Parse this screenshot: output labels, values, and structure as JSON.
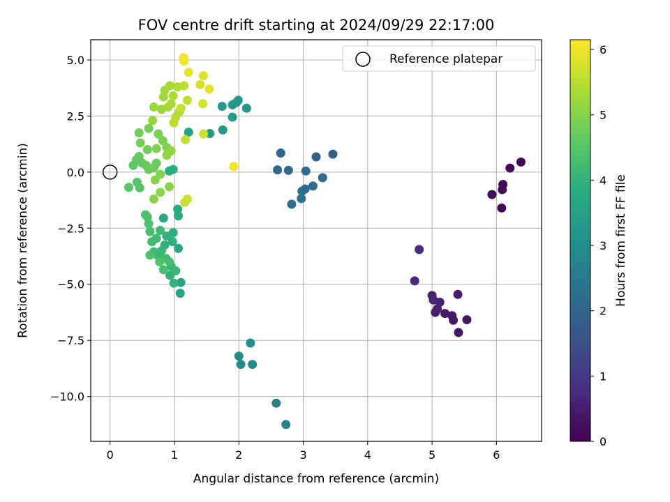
{
  "chart_data": {
    "type": "scatter",
    "title": "FOV centre drift starting at 2024/09/29 22:17:00",
    "xlabel": "Angular distance from reference (arcmin)",
    "ylabel": "Rotation from reference (arcmin)",
    "xlim": [
      -0.3,
      6.7
    ],
    "ylim": [
      -12.0,
      5.9
    ],
    "xticks": [
      0,
      1,
      2,
      3,
      4,
      5,
      6
    ],
    "xtick_labels": [
      "0",
      "1",
      "2",
      "3",
      "4",
      "5",
      "6"
    ],
    "yticks": [
      5.0,
      2.5,
      0.0,
      -2.5,
      -5.0,
      -7.5,
      -10.0
    ],
    "ytick_labels": [
      "5.0",
      "2.5",
      "0.0",
      "−2.5",
      "−5.0",
      "−7.5",
      "−10.0"
    ],
    "grid": true,
    "legend": {
      "position": "upper-right",
      "entries": [
        "Reference platepar"
      ]
    },
    "reference_point": {
      "label": "Reference platepar",
      "x": 0.0,
      "y": 0.0,
      "marker": "open-circle"
    },
    "colorbar": {
      "label": "Hours from first FF file",
      "colormap": "viridis",
      "range": [
        0,
        6.15
      ],
      "ticks": [
        0,
        1,
        2,
        3,
        4,
        5,
        6
      ],
      "tick_labels": [
        "0",
        "1",
        "2",
        "3",
        "4",
        "5",
        "6"
      ]
    },
    "points": [
      {
        "x": 6.38,
        "y": 0.45,
        "t": 0.05
      },
      {
        "x": 6.21,
        "y": 0.18,
        "t": 0.1
      },
      {
        "x": 6.1,
        "y": -0.55,
        "t": 0.12
      },
      {
        "x": 6.09,
        "y": -0.78,
        "t": 0.15
      },
      {
        "x": 5.93,
        "y": -1.0,
        "t": 0.18
      },
      {
        "x": 6.08,
        "y": -1.6,
        "t": 0.2
      },
      {
        "x": 5.41,
        "y": -7.15,
        "t": 0.35
      },
      {
        "x": 5.54,
        "y": -6.58,
        "t": 0.38
      },
      {
        "x": 5.33,
        "y": -6.6,
        "t": 0.4
      },
      {
        "x": 5.31,
        "y": -6.4,
        "t": 0.42
      },
      {
        "x": 5.2,
        "y": -6.3,
        "t": 0.45
      },
      {
        "x": 5.4,
        "y": -5.45,
        "t": 0.48
      },
      {
        "x": 5.05,
        "y": -6.25,
        "t": 0.5
      },
      {
        "x": 5.12,
        "y": -5.8,
        "t": 0.55
      },
      {
        "x": 5.08,
        "y": -6.1,
        "t": 0.58
      },
      {
        "x": 5.0,
        "y": -5.5,
        "t": 0.6
      },
      {
        "x": 5.02,
        "y": -5.7,
        "t": 0.62
      },
      {
        "x": 4.73,
        "y": -4.85,
        "t": 0.7
      },
      {
        "x": 4.8,
        "y": -3.45,
        "t": 0.75
      },
      {
        "x": 3.46,
        "y": 0.8,
        "t": 1.9
      },
      {
        "x": 3.2,
        "y": 0.68,
        "t": 1.95
      },
      {
        "x": 2.65,
        "y": 0.85,
        "t": 2.0
      },
      {
        "x": 2.6,
        "y": 0.1,
        "t": 2.05
      },
      {
        "x": 2.77,
        "y": 0.08,
        "t": 2.1
      },
      {
        "x": 3.04,
        "y": 0.05,
        "t": 2.12
      },
      {
        "x": 3.3,
        "y": -0.25,
        "t": 2.15
      },
      {
        "x": 3.15,
        "y": -0.62,
        "t": 2.2
      },
      {
        "x": 2.98,
        "y": -0.85,
        "t": 2.22
      },
      {
        "x": 3.03,
        "y": -0.75,
        "t": 2.25
      },
      {
        "x": 2.97,
        "y": -1.18,
        "t": 2.28
      },
      {
        "x": 2.82,
        "y": -1.43,
        "t": 2.3
      },
      {
        "x": 2.58,
        "y": -10.3,
        "t": 2.7
      },
      {
        "x": 2.73,
        "y": -11.25,
        "t": 2.75
      },
      {
        "x": 2.0,
        "y": -8.2,
        "t": 2.9
      },
      {
        "x": 2.03,
        "y": -8.57,
        "t": 2.95
      },
      {
        "x": 2.21,
        "y": -8.57,
        "t": 3.0
      },
      {
        "x": 2.18,
        "y": -7.62,
        "t": 3.05
      },
      {
        "x": 1.99,
        "y": 3.2,
        "t": 3.2
      },
      {
        "x": 2.12,
        "y": 2.85,
        "t": 3.22
      },
      {
        "x": 1.9,
        "y": 3.0,
        "t": 3.25
      },
      {
        "x": 1.96,
        "y": 3.1,
        "t": 3.27
      },
      {
        "x": 1.74,
        "y": 2.93,
        "t": 3.3
      },
      {
        "x": 1.75,
        "y": 1.88,
        "t": 3.32
      },
      {
        "x": 1.9,
        "y": 2.45,
        "t": 3.35
      },
      {
        "x": 1.55,
        "y": 1.72,
        "t": 3.4
      },
      {
        "x": 1.22,
        "y": 1.78,
        "t": 3.5
      },
      {
        "x": 1.1,
        "y": -4.92,
        "t": 3.55
      },
      {
        "x": 1.09,
        "y": -5.4,
        "t": 3.6
      },
      {
        "x": 1.06,
        "y": -3.4,
        "t": 3.65
      },
      {
        "x": 1.05,
        "y": -1.65,
        "t": 3.7
      },
      {
        "x": 1.06,
        "y": -1.95,
        "t": 3.72
      },
      {
        "x": 0.83,
        "y": -2.05,
        "t": 3.75
      },
      {
        "x": 0.92,
        "y": 0.05,
        "t": 3.8
      },
      {
        "x": 0.98,
        "y": 0.12,
        "t": 3.85
      },
      {
        "x": 0.98,
        "y": -2.7,
        "t": 3.9
      },
      {
        "x": 0.97,
        "y": -3.1,
        "t": 3.92
      },
      {
        "x": 0.88,
        "y": -2.85,
        "t": 3.95
      },
      {
        "x": 0.85,
        "y": -3.25,
        "t": 3.97
      },
      {
        "x": 0.93,
        "y": -4.6,
        "t": 4.0
      },
      {
        "x": 0.99,
        "y": -4.95,
        "t": 4.02
      },
      {
        "x": 0.95,
        "y": -4.2,
        "t": 4.05
      },
      {
        "x": 1.02,
        "y": -4.4,
        "t": 4.07
      },
      {
        "x": 0.8,
        "y": -3.5,
        "t": 4.1
      },
      {
        "x": 0.75,
        "y": -3.75,
        "t": 4.12
      },
      {
        "x": 0.68,
        "y": -3.55,
        "t": 4.15
      },
      {
        "x": 0.78,
        "y": -2.6,
        "t": 4.17
      },
      {
        "x": 0.72,
        "y": -2.95,
        "t": 4.2
      },
      {
        "x": 0.65,
        "y": -3.1,
        "t": 4.22
      },
      {
        "x": 0.87,
        "y": -3.85,
        "t": 4.25
      },
      {
        "x": 0.83,
        "y": -4.35,
        "t": 4.27
      },
      {
        "x": 0.92,
        "y": -4.0,
        "t": 4.3
      },
      {
        "x": 0.62,
        "y": -2.65,
        "t": 4.32
      },
      {
        "x": 0.6,
        "y": -2.3,
        "t": 4.35
      },
      {
        "x": 0.58,
        "y": -2.0,
        "t": 4.37
      },
      {
        "x": 0.55,
        "y": -1.9,
        "t": 4.4
      },
      {
        "x": 0.62,
        "y": -3.7,
        "t": 4.42
      },
      {
        "x": 0.77,
        "y": -4.0,
        "t": 4.45
      },
      {
        "x": 0.42,
        "y": -0.45,
        "t": 4.5
      },
      {
        "x": 0.46,
        "y": -0.7,
        "t": 4.52
      },
      {
        "x": 0.29,
        "y": -0.68,
        "t": 4.55
      },
      {
        "x": 0.36,
        "y": 0.3,
        "t": 4.57
      },
      {
        "x": 0.41,
        "y": 0.55,
        "t": 4.6
      },
      {
        "x": 0.5,
        "y": 0.4,
        "t": 4.62
      },
      {
        "x": 0.45,
        "y": 0.7,
        "t": 4.65
      },
      {
        "x": 0.56,
        "y": 0.3,
        "t": 4.67
      },
      {
        "x": 0.6,
        "y": 0.12,
        "t": 4.7
      },
      {
        "x": 0.68,
        "y": 0.2,
        "t": 4.72
      },
      {
        "x": 0.72,
        "y": 0.4,
        "t": 4.75
      },
      {
        "x": 0.58,
        "y": 1.0,
        "t": 4.78
      },
      {
        "x": 0.47,
        "y": 1.3,
        "t": 4.8
      },
      {
        "x": 0.45,
        "y": 1.75,
        "t": 4.82
      },
      {
        "x": 0.6,
        "y": 1.95,
        "t": 4.85
      },
      {
        "x": 0.75,
        "y": 1.7,
        "t": 4.87
      },
      {
        "x": 0.82,
        "y": 1.4,
        "t": 4.9
      },
      {
        "x": 0.88,
        "y": 1.1,
        "t": 4.92
      },
      {
        "x": 0.72,
        "y": 1.05,
        "t": 4.95
      },
      {
        "x": 0.7,
        "y": -0.35,
        "t": 4.97
      },
      {
        "x": 0.78,
        "y": -0.1,
        "t": 5.0
      },
      {
        "x": 0.68,
        "y": -1.2,
        "t": 5.02
      },
      {
        "x": 0.78,
        "y": -0.9,
        "t": 5.05
      },
      {
        "x": 0.92,
        "y": -0.65,
        "t": 5.07
      },
      {
        "x": 0.88,
        "y": 0.75,
        "t": 5.1
      },
      {
        "x": 0.95,
        "y": 0.95,
        "t": 5.12
      },
      {
        "x": 0.66,
        "y": 2.3,
        "t": 5.15
      },
      {
        "x": 0.68,
        "y": 2.9,
        "t": 5.2
      },
      {
        "x": 0.8,
        "y": 2.8,
        "t": 5.22
      },
      {
        "x": 0.83,
        "y": 3.35,
        "t": 5.25
      },
      {
        "x": 0.85,
        "y": 3.65,
        "t": 5.27
      },
      {
        "x": 0.93,
        "y": 3.85,
        "t": 5.3
      },
      {
        "x": 0.9,
        "y": 2.9,
        "t": 5.32
      },
      {
        "x": 0.95,
        "y": 3.05,
        "t": 5.35
      },
      {
        "x": 0.98,
        "y": 3.4,
        "t": 5.37
      },
      {
        "x": 1.05,
        "y": 3.8,
        "t": 5.4
      },
      {
        "x": 1.08,
        "y": 2.7,
        "t": 5.45
      },
      {
        "x": 1.02,
        "y": 2.45,
        "t": 5.47
      },
      {
        "x": 0.99,
        "y": 2.2,
        "t": 5.5
      },
      {
        "x": 1.15,
        "y": 3.85,
        "t": 5.55
      },
      {
        "x": 1.2,
        "y": 3.2,
        "t": 5.57
      },
      {
        "x": 1.1,
        "y": 2.85,
        "t": 5.6
      },
      {
        "x": 1.17,
        "y": 1.45,
        "t": 5.62
      },
      {
        "x": 1.2,
        "y": -1.2,
        "t": 5.65
      },
      {
        "x": 1.16,
        "y": -1.35,
        "t": 5.67
      },
      {
        "x": 1.45,
        "y": 1.7,
        "t": 5.7
      },
      {
        "x": 1.44,
        "y": 3.05,
        "t": 5.75
      },
      {
        "x": 1.4,
        "y": 3.9,
        "t": 5.8
      },
      {
        "x": 1.45,
        "y": 4.3,
        "t": 5.85
      },
      {
        "x": 1.54,
        "y": 3.7,
        "t": 5.9
      },
      {
        "x": 1.22,
        "y": 4.45,
        "t": 5.95
      },
      {
        "x": 1.15,
        "y": 4.95,
        "t": 6.0
      },
      {
        "x": 1.14,
        "y": 5.1,
        "t": 6.05
      },
      {
        "x": 1.92,
        "y": 0.25,
        "t": 6.1
      }
    ]
  }
}
